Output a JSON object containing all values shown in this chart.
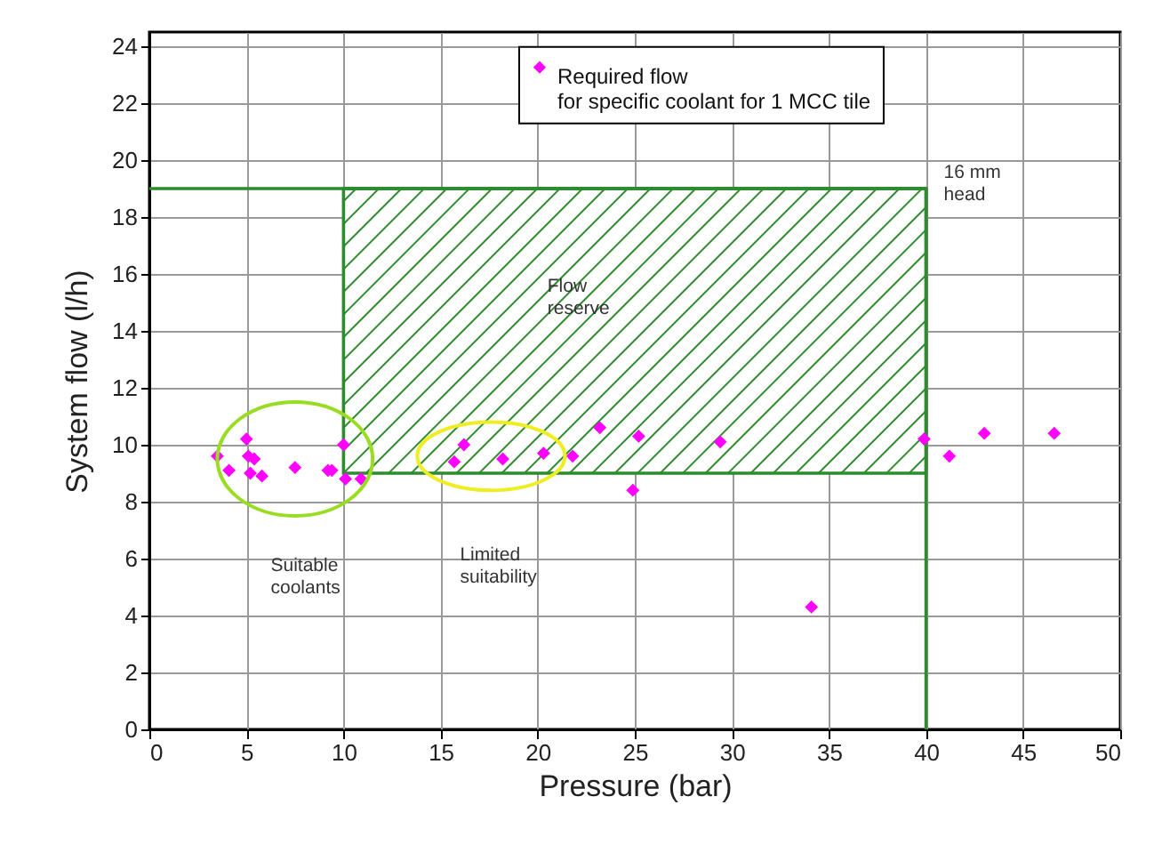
{
  "chart_data": {
    "type": "scatter",
    "xlabel": "Pressure (bar)",
    "ylabel": "System flow (l/h)",
    "xlim": [
      0,
      50
    ],
    "ylim": [
      0,
      24.5
    ],
    "xticks": [
      0,
      5,
      10,
      15,
      20,
      25,
      30,
      35,
      40,
      45,
      50
    ],
    "yticks": [
      0,
      2,
      4,
      6,
      8,
      10,
      12,
      14,
      16,
      18,
      20,
      22,
      24
    ],
    "grid": true,
    "legend": "top right",
    "series": [
      {
        "type": "line",
        "color": "#2e8b2e",
        "x": [
          10,
          40
        ],
        "values": [
          19,
          19
        ],
        "lower": [
          9,
          9
        ],
        "upper": [
          19,
          19
        ]
      },
      {
        "type": "line",
        "color": "#2e8b2e",
        "x": [
          0,
          40,
          40
        ],
        "values": [
          19,
          19,
          0
        ]
      },
      {
        "name": "Required flow\nfor specific coolant for 1 MCC tile",
        "color": "#ff00ff",
        "marker": "diamond",
        "x": [
          3.5,
          4.1,
          5.0,
          5.1,
          5.4,
          5.2,
          5.8,
          7.5,
          9.2,
          9.4,
          10.0,
          10.1,
          10.9,
          15.7,
          16.2,
          18.2,
          20.3,
          21.8,
          23.2,
          25.2,
          24.9,
          29.4,
          34.1,
          39.9,
          41.2,
          43.0,
          46.6
        ],
        "values": [
          9.6,
          9.1,
          10.2,
          9.6,
          9.5,
          9.0,
          8.9,
          9.2,
          9.1,
          9.1,
          10.0,
          8.8,
          8.8,
          9.4,
          10.0,
          9.5,
          9.7,
          9.6,
          10.6,
          10.3,
          8.4,
          10.1,
          4.3,
          10.2,
          9.6,
          10.4,
          10.4
        ]
      }
    ],
    "annotations": [
      {
        "text": "16 mm head",
        "x": 40,
        "y": 19
      },
      "Flow reserve",
      "Suitable coolants",
      "Limited suitability"
    ]
  }
}
